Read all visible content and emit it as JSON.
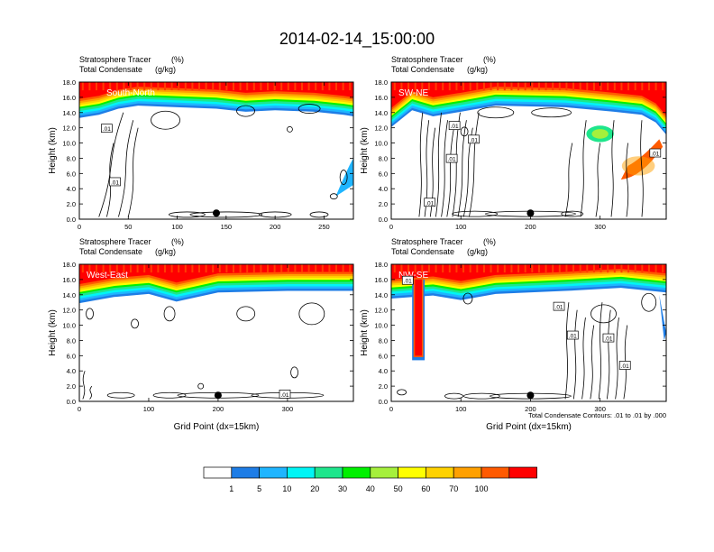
{
  "figure": {
    "title": "2014-02-14_15:00:00",
    "contour_note": "Total Condensate Contours: .01 to .01 by .000"
  },
  "colors": {
    "levels": [
      "#ffffff",
      "#1e7de6",
      "#1fb5ff",
      "#00f5f5",
      "#1ee68c",
      "#00f000",
      "#a5f03c",
      "#ffff00",
      "#ffd200",
      "#ffa000",
      "#ff5a00",
      "#ff0000"
    ],
    "contour": "#000000"
  },
  "colorbar": {
    "labels": [
      "1",
      "5",
      "10",
      "20",
      "30",
      "40",
      "50",
      "60",
      "70",
      "100"
    ]
  },
  "chart_data": [
    {
      "type": "contour",
      "panel": "South-North",
      "label_left_1": "Stratosphere Tracer",
      "label_right_1": "(%)",
      "label_left_2": "Total Condensate",
      "label_right_2": "(g/kg)",
      "xlabel": "",
      "ylabel": "Height (km)",
      "xlim": [
        0,
        280
      ],
      "ylim": [
        0,
        18
      ],
      "x_ticks": [
        "0",
        "50",
        "100",
        "150",
        "200",
        "250"
      ],
      "y_ticks": [
        "0.0",
        "2.0",
        "4.0",
        "6.0",
        "8.0",
        "10.0",
        "12.0",
        "14.0",
        "16.0",
        "18.0"
      ],
      "marker_x": 140,
      "contour_labels": [
        ".01",
        ".01"
      ],
      "tropopause": [
        [
          0,
          14.2
        ],
        [
          20,
          14.6
        ],
        [
          40,
          15.4
        ],
        [
          60,
          15.8
        ],
        [
          100,
          15.6
        ],
        [
          140,
          15.4
        ],
        [
          170,
          15.0
        ],
        [
          200,
          15.2
        ],
        [
          240,
          15.0
        ],
        [
          270,
          14.6
        ],
        [
          280,
          14.4
        ]
      ]
    },
    {
      "type": "contour",
      "panel": "SW-NE",
      "label_left_1": "Stratosphere Tracer",
      "label_right_1": "(%)",
      "label_left_2": "Total Condensate",
      "label_right_2": "(g/kg)",
      "xlabel": "",
      "ylabel": "Height (km)",
      "xlim": [
        0,
        395
      ],
      "ylim": [
        0,
        18
      ],
      "x_ticks": [
        "0",
        "100",
        "200",
        "300"
      ],
      "y_ticks": [
        "0.0",
        "2.0",
        "4.0",
        "6.0",
        "8.0",
        "10.0",
        "12.0",
        "14.0",
        "16.0",
        "18.0"
      ],
      "marker_x": 200,
      "contour_labels": [
        ".01",
        ".01",
        ".01",
        ".01",
        ".01"
      ],
      "tropopause": [
        [
          0,
          13.0
        ],
        [
          30,
          15.2
        ],
        [
          60,
          14.4
        ],
        [
          100,
          15.0
        ],
        [
          150,
          15.8
        ],
        [
          250,
          15.6
        ],
        [
          320,
          15.0
        ],
        [
          360,
          14.6
        ],
        [
          380,
          13.6
        ],
        [
          395,
          12.0
        ]
      ]
    },
    {
      "type": "contour",
      "panel": "West-East",
      "label_left_1": "Stratosphere Tracer",
      "label_right_1": "(%)",
      "label_left_2": "Total Condensate",
      "label_right_2": "(g/kg)",
      "xlabel": "Grid Point (dx=15km)",
      "ylabel": "Height (km)",
      "xlim": [
        0,
        395
      ],
      "ylim": [
        0,
        18
      ],
      "x_ticks": [
        "0",
        "100",
        "200",
        "300"
      ],
      "y_ticks": [
        "0.0",
        "2.0",
        "4.0",
        "6.0",
        "8.0",
        "10.0",
        "12.0",
        "14.0",
        "16.0",
        "18.0"
      ],
      "marker_x": 200,
      "contour_labels": [
        ".01"
      ],
      "tropopause": [
        [
          0,
          13.8
        ],
        [
          50,
          14.6
        ],
        [
          100,
          15.0
        ],
        [
          140,
          14.0
        ],
        [
          200,
          15.2
        ],
        [
          300,
          15.4
        ],
        [
          395,
          15.4
        ]
      ]
    },
    {
      "type": "contour",
      "panel": "NW-SE",
      "label_left_1": "Stratosphere Tracer",
      "label_right_1": "(%)",
      "label_left_2": "Total Condensate",
      "label_right_2": "(g/kg)",
      "xlabel": "Grid Point (dx=15km)",
      "ylabel": "Height (km)",
      "xlim": [
        0,
        395
      ],
      "ylim": [
        0,
        18
      ],
      "x_ticks": [
        "0",
        "100",
        "200",
        "300"
      ],
      "y_ticks": [
        "0.0",
        "2.0",
        "4.0",
        "6.0",
        "8.0",
        "10.0",
        "12.0",
        "14.0",
        "16.0",
        "18.0"
      ],
      "marker_x": 200,
      "contour_labels": [
        ".01",
        ".01",
        ".01",
        ".01",
        ".01"
      ],
      "tropopause": [
        [
          0,
          14.4
        ],
        [
          60,
          14.8
        ],
        [
          100,
          14.2
        ],
        [
          150,
          15.0
        ],
        [
          250,
          15.4
        ],
        [
          330,
          15.8
        ],
        [
          395,
          15.2
        ]
      ]
    }
  ]
}
